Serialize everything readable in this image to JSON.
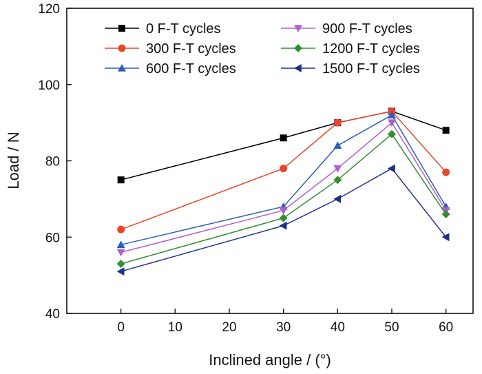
{
  "chart_data": {
    "type": "line",
    "xlabel": "Inclined angle / (°)",
    "ylabel": "Load / N",
    "xlim": [
      -10,
      65
    ],
    "ylim": [
      40,
      120
    ],
    "xticks": [
      0,
      10,
      20,
      30,
      40,
      50,
      60
    ],
    "yticks": [
      40,
      60,
      80,
      100,
      120
    ],
    "legend_position": "top",
    "x": [
      0,
      30,
      40,
      50,
      60
    ],
    "series": [
      {
        "name": "0 F-T cycles",
        "color": "#000000",
        "marker": "square",
        "values": [
          75,
          86,
          90,
          93,
          88
        ]
      },
      {
        "name": "300 F-T cycles",
        "color": "#e8472b",
        "marker": "circle",
        "values": [
          62,
          78,
          90,
          93,
          77
        ]
      },
      {
        "name": "600 F-T cycles",
        "color": "#2b5fb8",
        "marker": "triangle-up",
        "values": [
          58,
          68,
          84,
          92,
          68
        ]
      },
      {
        "name": "900 F-T cycles",
        "color": "#b05fd0",
        "marker": "triangle-down",
        "values": [
          56,
          67,
          78,
          90,
          67
        ]
      },
      {
        "name": "1200 F-T cycles",
        "color": "#2f8f2f",
        "marker": "diamond",
        "values": [
          53,
          65,
          75,
          87,
          66
        ]
      },
      {
        "name": "1500 F-T cycles",
        "color": "#1f2f8a",
        "marker": "triangle-left",
        "values": [
          51,
          63,
          70,
          78,
          60
        ]
      }
    ]
  }
}
